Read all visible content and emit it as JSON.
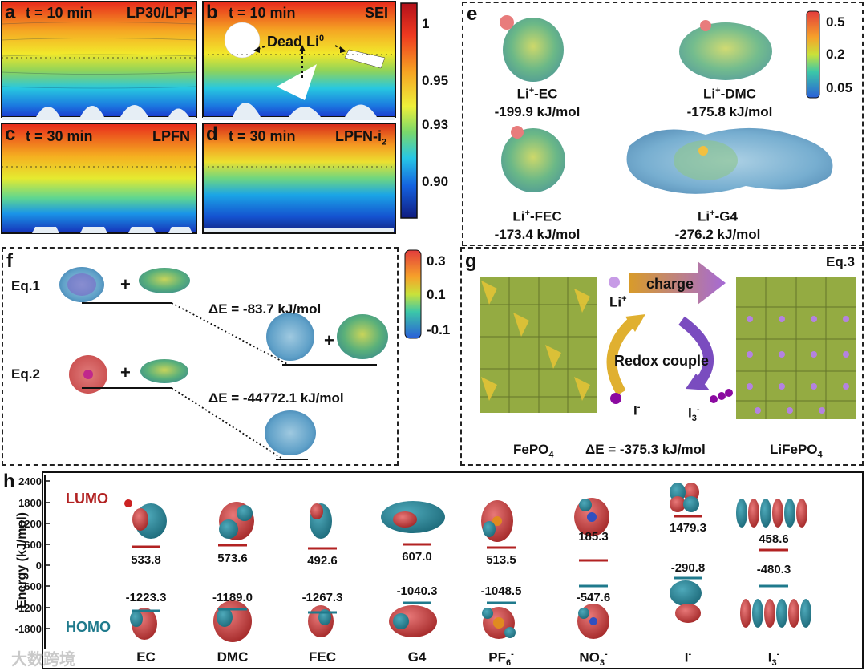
{
  "panels": {
    "a": {
      "letter": "a",
      "title": "t = 10 min",
      "tag": "LP30/LPF"
    },
    "b": {
      "letter": "b",
      "title": "t = 10 min",
      "tag": "SEI",
      "annotation": "Dead Li",
      "annotation_sup": "0"
    },
    "c": {
      "letter": "c",
      "title": "t = 30 min",
      "tag": "LPFN"
    },
    "d": {
      "letter": "d",
      "title": "t = 30 min",
      "tag": "LPFN-i",
      "tag_sub": "2"
    },
    "colorbar1": {
      "ticks": [
        "1",
        "0.95",
        "0.93",
        "0.90"
      ]
    },
    "e": {
      "letter": "e",
      "colorbar_ticks": [
        "0.5",
        "0.2",
        "0.05"
      ],
      "items": [
        {
          "name": "Li",
          "sup": "+",
          "suffix": "-EC",
          "energy": "-199.9 kJ/mol"
        },
        {
          "name": "Li",
          "sup": "+",
          "suffix": "-DMC",
          "energy": "-175.8 kJ/mol"
        },
        {
          "name": "Li",
          "sup": "+",
          "suffix": "-FEC",
          "energy": "-173.4 kJ/mol"
        },
        {
          "name": "Li",
          "sup": "+",
          "suffix": "-G4",
          "energy": "-276.2 kJ/mol"
        }
      ]
    },
    "f": {
      "letter": "f",
      "eq1": "Eq.1",
      "eq2": "Eq.2",
      "plus": "+",
      "de1": "ΔE = -83.7 kJ/mol",
      "de2": "ΔE = -44772.1 kJ/mol",
      "colorbar_ticks": [
        "0.3",
        "0.1",
        "-0.1"
      ]
    },
    "g": {
      "letter": "g",
      "eq": "Eq.3",
      "charge": "charge",
      "li": "Li",
      "li_sup": "+",
      "redox": "Redox couple",
      "iminus": "I",
      "iminus_sup": "-",
      "i3": "I",
      "i3_sub": "3",
      "i3_sup": "-",
      "left_name": "FePO",
      "left_sub": "4",
      "right_name": "LiFePO",
      "right_sub": "4",
      "de": "ΔE = -375.3 kJ/mol"
    },
    "h": {
      "letter": "h",
      "ylabel": "Energy (kJ/mol)",
      "lumo": "LUMO",
      "homo": "HOMO",
      "yticks": [
        "2400",
        "1800",
        "1200",
        "600",
        "0",
        "-600",
        "-1200",
        "-1800"
      ],
      "watermark": "大数跨境"
    }
  },
  "chart_data": {
    "type": "table",
    "title": "",
    "xlabel": "",
    "ylabel": "Energy (kJ/mol)",
    "ylim": [
      -2100,
      2400
    ],
    "categories": [
      "EC",
      "DMC",
      "FEC",
      "G4",
      "PF6-",
      "NO3-",
      "I-",
      "I3-"
    ],
    "category_labels": [
      {
        "base": "EC",
        "sup": "",
        "sub": ""
      },
      {
        "base": "DMC",
        "sup": "",
        "sub": ""
      },
      {
        "base": "FEC",
        "sup": "",
        "sub": ""
      },
      {
        "base": "G4",
        "sup": "",
        "sub": ""
      },
      {
        "base": "PF",
        "sub": "6",
        "sup": "-"
      },
      {
        "base": "NO",
        "sub": "3",
        "sup": "-"
      },
      {
        "base": "I",
        "sub": "",
        "sup": "-"
      },
      {
        "base": "I",
        "sub": "3",
        "sup": "-"
      }
    ],
    "series": [
      {
        "name": "LUMO",
        "values": [
          533.8,
          573.6,
          492.6,
          607.0,
          513.5,
          185.3,
          1479.3,
          458.6
        ],
        "labels": [
          "533.8",
          "573.6",
          "492.6",
          "607.0",
          "513.5",
          "185.3",
          "1479.3",
          "458.6"
        ]
      },
      {
        "name": "HOMO",
        "values": [
          -1223.3,
          -1189.0,
          -1267.3,
          -1040.3,
          -1048.5,
          -547.6,
          -290.8,
          -480.3
        ],
        "labels": [
          "-1223.3",
          "-1189.0",
          "-1267.3",
          "-1040.3",
          "-1048.5",
          "-547.6",
          "-290.8",
          "-480.3"
        ]
      }
    ],
    "colors": {
      "lumo": "#b22222",
      "homo": "#1f7a8c"
    }
  }
}
